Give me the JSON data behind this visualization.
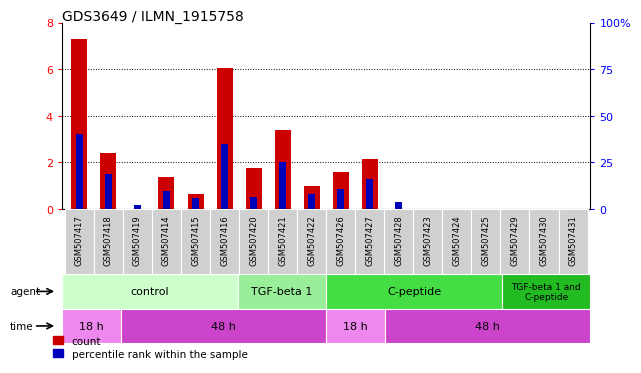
{
  "title": "GDS3649 / ILMN_1915758",
  "samples": [
    "GSM507417",
    "GSM507418",
    "GSM507419",
    "GSM507414",
    "GSM507415",
    "GSM507416",
    "GSM507420",
    "GSM507421",
    "GSM507422",
    "GSM507426",
    "GSM507427",
    "GSM507428",
    "GSM507423",
    "GSM507424",
    "GSM507425",
    "GSM507429",
    "GSM507430",
    "GSM507431"
  ],
  "count_values": [
    7.3,
    2.4,
    0.0,
    1.35,
    0.65,
    6.05,
    1.75,
    3.4,
    1.0,
    1.6,
    2.15,
    0.0,
    0.0,
    0.0,
    0.0,
    0.0,
    0.0,
    0.0
  ],
  "percentile_values": [
    40.0,
    18.75,
    1.875,
    9.375,
    5.625,
    35.0,
    6.25,
    25.0,
    8.125,
    10.625,
    16.25,
    3.75,
    0.0,
    0.0,
    0.0,
    0.0,
    0.0,
    0.0
  ],
  "bar_color_red": "#cc0000",
  "bar_color_blue": "#0000bb",
  "ylim_left": [
    0,
    8
  ],
  "ylim_right": [
    0,
    100
  ],
  "yticks_left": [
    0,
    2,
    4,
    6,
    8
  ],
  "yticks_right": [
    0,
    25,
    50,
    75,
    100
  ],
  "yticklabels_right": [
    "0",
    "25",
    "50",
    "75",
    "100%"
  ],
  "grid_yticks": [
    2,
    4,
    6
  ],
  "agent_groups": [
    {
      "label": "control",
      "start": 0,
      "end": 6,
      "color": "#ccffcc"
    },
    {
      "label": "TGF-beta 1",
      "start": 6,
      "end": 9,
      "color": "#99ee99"
    },
    {
      "label": "C-peptide",
      "start": 9,
      "end": 15,
      "color": "#44dd44"
    },
    {
      "label": "TGF-beta 1 and\nC-peptide",
      "start": 15,
      "end": 18,
      "color": "#22bb22"
    }
  ],
  "time_groups": [
    {
      "label": "18 h",
      "start": 0,
      "end": 2,
      "color": "#ee88ee"
    },
    {
      "label": "48 h",
      "start": 2,
      "end": 9,
      "color": "#cc44cc"
    },
    {
      "label": "18 h",
      "start": 9,
      "end": 11,
      "color": "#ee88ee"
    },
    {
      "label": "48 h",
      "start": 11,
      "end": 18,
      "color": "#cc44cc"
    }
  ],
  "legend_count_label": "count",
  "legend_percentile_label": "percentile rank within the sample",
  "bar_width": 0.55,
  "tick_label_fontsize": 6.0,
  "title_fontsize": 10,
  "bg_color": "#d8d8d8",
  "sample_box_color": "#d0d0d0"
}
